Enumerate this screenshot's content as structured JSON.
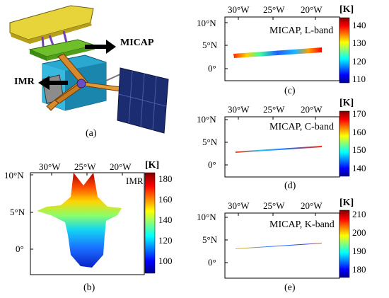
{
  "panels": {
    "a": {
      "letter": "(a)",
      "labels": {
        "micap": "MICAP",
        "imr": "IMR"
      }
    },
    "b": {
      "letter": "(b)",
      "map_label": "IMR",
      "x_ticks": [
        "30°W",
        "25°W",
        "20°W"
      ],
      "y_ticks": [
        "10°N",
        "5°N",
        "0°"
      ],
      "colorbar_unit": "[K]",
      "colorbar_ticks": [
        "180",
        "160",
        "140",
        "120",
        "100"
      ],
      "range": [
        90,
        190
      ]
    },
    "c": {
      "letter": "(c)",
      "map_label": "MICAP, L-band",
      "x_ticks": [
        "30°W",
        "25°W",
        "20°W"
      ],
      "y_ticks": [
        "10°N",
        "5°N",
        "0°"
      ],
      "colorbar_unit": "[K]",
      "colorbar_ticks": [
        "140",
        "130",
        "120",
        "110"
      ],
      "range": [
        110,
        145
      ]
    },
    "d": {
      "letter": "(d)",
      "map_label": "MICAP, C-band",
      "x_ticks": [
        "30°W",
        "25°W",
        "20°W"
      ],
      "y_ticks": [
        "10°N",
        "5°N",
        "0°"
      ],
      "colorbar_unit": "[K]",
      "colorbar_ticks": [
        "170",
        "160",
        "150",
        "140"
      ],
      "range": [
        133,
        170
      ]
    },
    "e": {
      "letter": "(e)",
      "map_label": "MICAP, K-band",
      "x_ticks": [
        "30°W",
        "25°W",
        "20°W"
      ],
      "y_ticks": [
        "10°N",
        "5°N",
        "0°"
      ],
      "colorbar_unit": "[K]",
      "colorbar_ticks": [
        "210",
        "200",
        "190",
        "180"
      ],
      "range": [
        175,
        215
      ]
    }
  },
  "colors": {
    "jet": [
      "#00008f",
      "#0000ff",
      "#00ffff",
      "#ffff00",
      "#ff0000",
      "#800000"
    ],
    "label_green": "#1a1a1a"
  }
}
